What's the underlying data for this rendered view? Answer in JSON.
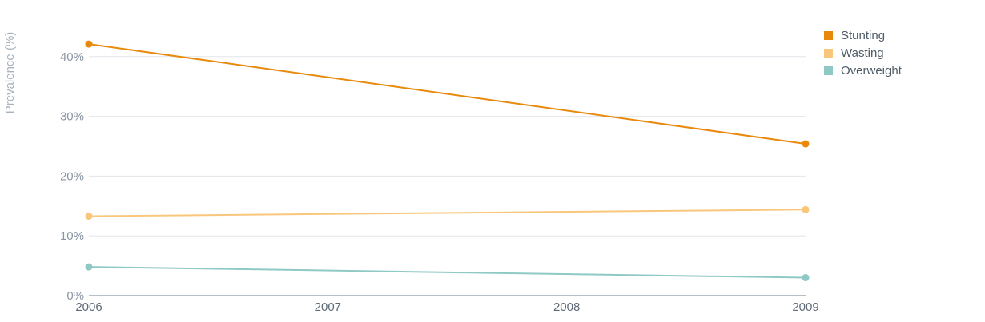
{
  "chart_data": {
    "type": "line",
    "x": [
      "2006",
      "2007",
      "2008",
      "2009"
    ],
    "ylabel": "Prevalence (%)",
    "ylim": [
      0,
      45
    ],
    "yticks": [
      0,
      10,
      20,
      30,
      40
    ],
    "ytick_labels": [
      "0%",
      "10%",
      "20%",
      "30%",
      "40%"
    ],
    "grid": true,
    "legend_position": "top-right",
    "series": [
      {
        "name": "Stunting",
        "color": "#e8890c",
        "points": [
          [
            2006,
            42.1
          ],
          [
            2009,
            25.4
          ]
        ]
      },
      {
        "name": "Wasting",
        "color": "#f9c77c",
        "points": [
          [
            2006,
            13.3
          ],
          [
            2009,
            14.4
          ]
        ]
      },
      {
        "name": "Overweight",
        "color": "#8fc9c5",
        "points": [
          [
            2006,
            4.8
          ],
          [
            2009,
            3.0
          ]
        ]
      }
    ]
  }
}
